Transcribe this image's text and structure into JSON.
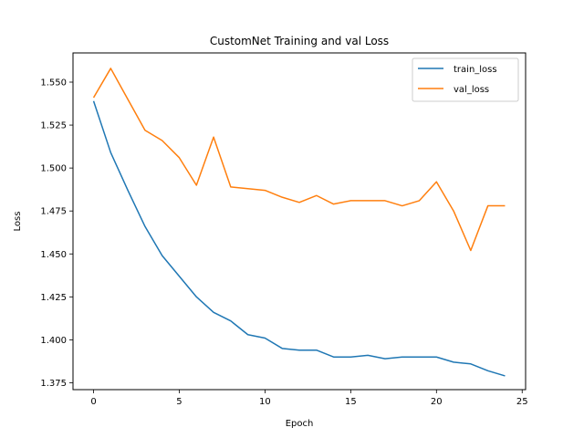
{
  "chart_data": {
    "type": "line",
    "title": "CustomNet Training and val Loss",
    "xlabel": "Epoch",
    "ylabel": "Loss",
    "xlim": [
      -1.2,
      25.2
    ],
    "ylim": [
      1.371,
      1.567
    ],
    "xticks": [
      0,
      5,
      10,
      15,
      20,
      25
    ],
    "yticks": [
      1.375,
      1.4,
      1.425,
      1.45,
      1.475,
      1.5,
      1.525,
      1.55
    ],
    "grid": false,
    "legend_position": "top-right",
    "x": [
      0,
      1,
      2,
      3,
      4,
      5,
      6,
      7,
      8,
      9,
      10,
      11,
      12,
      13,
      14,
      15,
      16,
      17,
      18,
      19,
      20,
      21,
      22,
      23,
      24
    ],
    "series": [
      {
        "name": "train_loss",
        "color": "#1f77b4",
        "values": [
          1.539,
          1.509,
          1.487,
          1.466,
          1.449,
          1.437,
          1.425,
          1.416,
          1.411,
          1.403,
          1.401,
          1.395,
          1.394,
          1.394,
          1.39,
          1.39,
          1.391,
          1.389,
          1.39,
          1.39,
          1.39,
          1.387,
          1.386,
          1.382,
          1.379
        ]
      },
      {
        "name": "val_loss",
        "color": "#ff7f0e",
        "values": [
          1.541,
          1.558,
          1.54,
          1.522,
          1.516,
          1.506,
          1.49,
          1.518,
          1.489,
          1.488,
          1.487,
          1.483,
          1.48,
          1.484,
          1.479,
          1.481,
          1.481,
          1.481,
          1.478,
          1.481,
          1.492,
          1.475,
          1.452,
          1.478,
          1.478
        ]
      }
    ]
  }
}
